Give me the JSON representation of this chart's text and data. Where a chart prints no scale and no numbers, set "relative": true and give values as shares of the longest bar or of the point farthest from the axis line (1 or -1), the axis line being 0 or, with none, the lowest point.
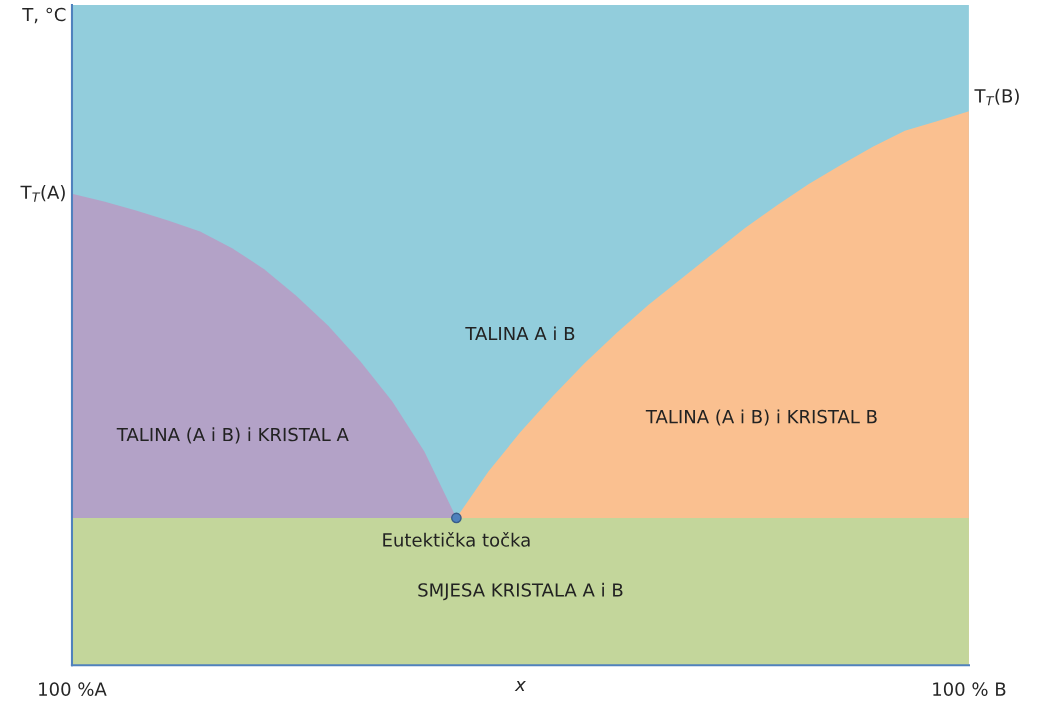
{
  "chart_data": {
    "type": "area",
    "relative": true,
    "xlabel": "x",
    "tick_labels": "x",
    "categories": [
      "100 %A",
      null,
      null,
      null,
      null,
      null,
      null,
      null,
      null,
      null,
      null,
      null,
      null,
      null,
      null,
      null,
      null,
      null,
      null,
      null,
      null,
      null,
      null,
      null,
      null,
      null,
      null,
      null,
      "100 % B"
    ],
    "bands": [
      {
        "axis": "y",
        "from": 0,
        "to": 1.192,
        "label": "TALINA A i B",
        "color": "#92cddc"
      },
      {
        "axis": "y",
        "from": 0,
        "to": 0.266,
        "label": "SMJESA KRISTALA A i B",
        "color": "#c3d69b"
      }
    ],
    "series": [
      {
        "name": "TALINA (A i B) i KRISTAL A",
        "color": "#b3a2c7",
        "values": [
          0.851,
          0.837,
          0.821,
          0.803,
          0.783,
          0.753,
          0.715,
          0.667,
          0.613,
          0.549,
          0.476,
          0.386,
          0.266,
          null,
          null,
          null,
          null,
          null,
          null,
          null,
          null,
          null,
          null,
          null,
          null,
          null,
          null,
          null,
          null
        ]
      },
      {
        "name": "TALINA (A i B) i KRISTAL B",
        "color": "#fac090",
        "values": [
          null,
          null,
          null,
          null,
          null,
          null,
          null,
          null,
          null,
          null,
          null,
          null,
          0.266,
          0.35,
          0.421,
          0.485,
          0.545,
          0.6,
          0.651,
          0.697,
          0.743,
          0.789,
          0.83,
          0.869,
          0.903,
          0.936,
          0.965,
          0.982,
          1
        ]
      },
      {
        "type": "scatter",
        "name": "Eutektička točka",
        "color": "#4f81bd",
        "values": [
          null,
          null,
          null,
          null,
          null,
          null,
          null,
          null,
          null,
          null,
          null,
          null,
          0.266,
          null,
          null,
          null,
          null,
          null,
          null,
          null,
          null,
          null,
          null,
          null,
          null,
          null,
          null,
          null,
          null
        ]
      }
    ],
    "annotations": [
      "T$_{T}$(A)",
      "T$_{T}$(B)",
      "T, °C"
    ]
  }
}
